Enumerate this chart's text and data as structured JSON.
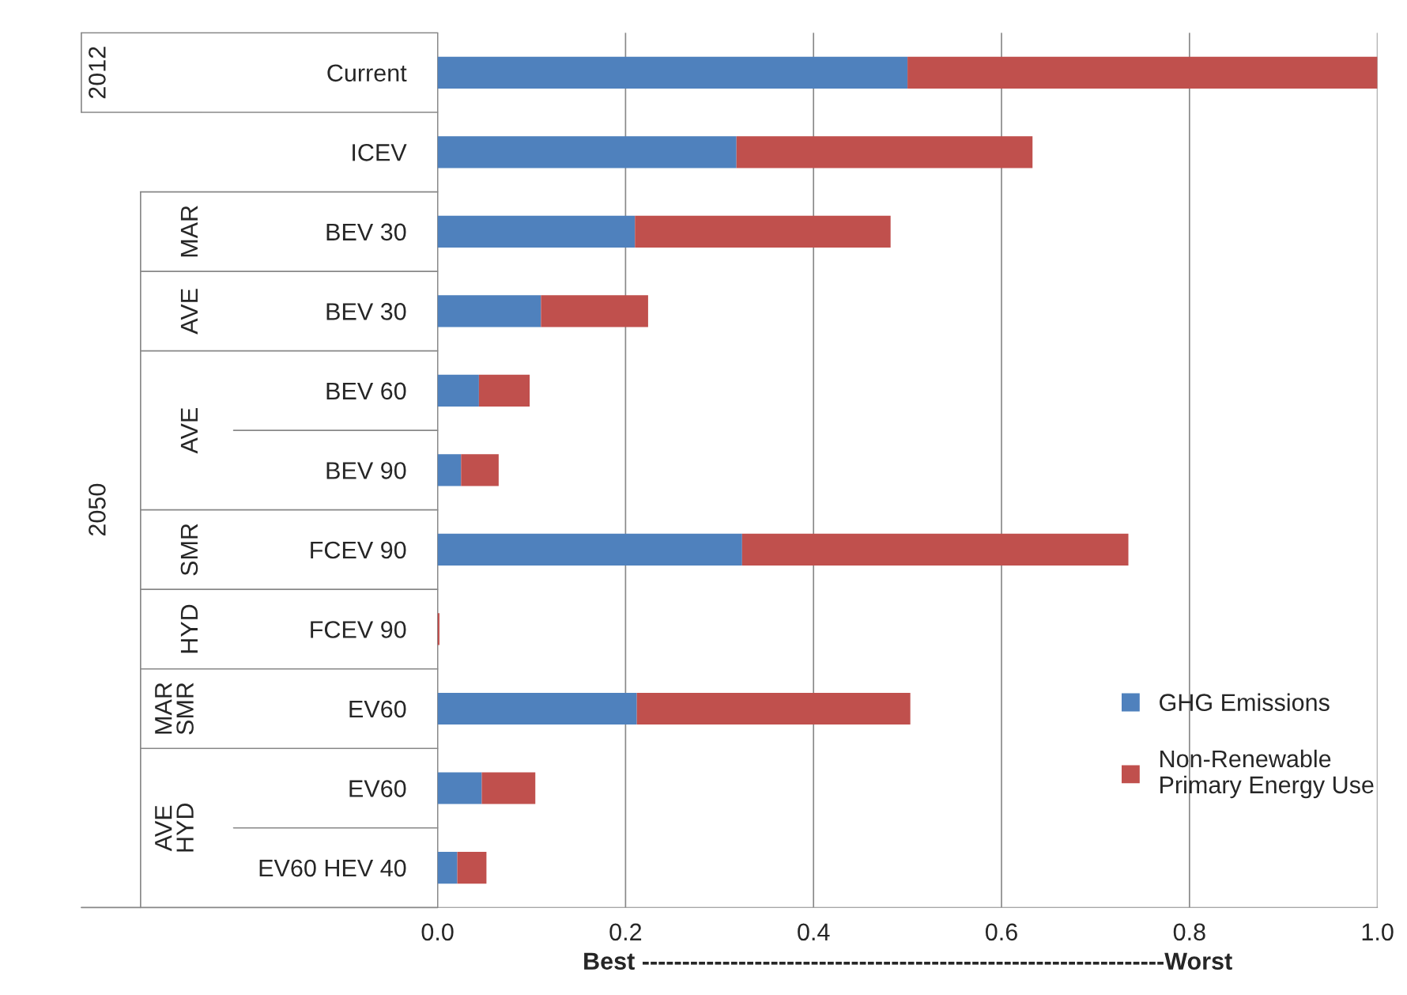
{
  "chart_data": {
    "type": "bar",
    "orientation": "horizontal",
    "stacked": true,
    "categories": [
      "Current",
      "ICEV",
      "BEV 30",
      "BEV 30",
      "BEV 60",
      "BEV 90",
      "FCEV 90",
      "FCEV 90",
      "EV60",
      "EV60",
      "EV60 HEV 40"
    ],
    "series": [
      {
        "name": "GHG Emissions",
        "color": "#4f81bd",
        "values": [
          0.5,
          0.318,
          0.21,
          0.11,
          0.044,
          0.025,
          0.324,
          null,
          0.212,
          0.047,
          0.021
        ]
      },
      {
        "name": "Non-Renewable\nPrimary Energy Use",
        "color": "#c0504d",
        "values": [
          0.5,
          0.315,
          0.272,
          0.114,
          0.054,
          0.04,
          0.411,
          0.002,
          0.291,
          0.057,
          0.031
        ]
      }
    ],
    "xlim": [
      0,
      1.0
    ],
    "xticks": [
      {
        "value": 0,
        "label": "0.0"
      },
      {
        "value": 0.2,
        "label": "0.2"
      },
      {
        "value": 0.4,
        "label": "0.4"
      },
      {
        "value": 0.6,
        "label": "0.6"
      },
      {
        "value": 0.8,
        "label": "0.8"
      },
      {
        "value": 1.0,
        "label": "1.0"
      }
    ],
    "xlabel": "Best -----------------------------------------------------------------Worst",
    "grid": "x",
    "legend": "bottom right",
    "annotations": [
      "2012",
      "2050",
      "MAR",
      "AVE",
      "AVE",
      "SMR",
      "HYD",
      "MAR\nSMR",
      "AVE\nHYD"
    ]
  }
}
